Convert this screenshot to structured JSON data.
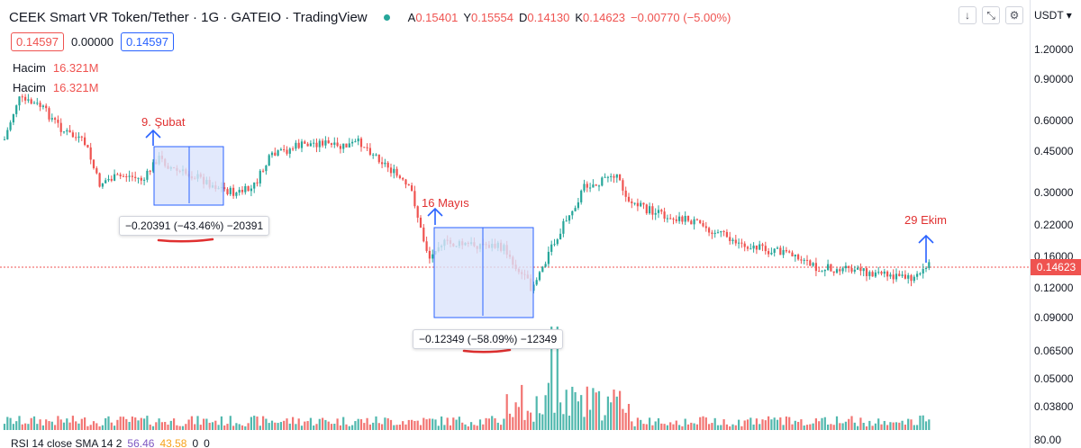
{
  "header": {
    "title": "CEEK Smart VR Token/Tether · 1G · GATEIO · TradingView",
    "ohlc": {
      "o_label": "A",
      "o_value": "0.15401",
      "h_label": "Y",
      "h_value": "0.15554",
      "l_label": "D",
      "l_value": "0.14130",
      "c_label": "K",
      "c_value": "0.14623",
      "change": "−0.00770 (−5.00%)"
    },
    "buttons": {
      "down": "↓",
      "fullscreen": "⤡",
      "settings": "⚙"
    }
  },
  "prices": {
    "bid": "0.14597",
    "spread": "0.00000",
    "ask": "0.14597"
  },
  "volume_labels": [
    {
      "name": "Hacim",
      "value": "16.321M"
    },
    {
      "name": "Hacim",
      "value": "16.321M"
    }
  ],
  "axis": {
    "currency": "USDT ▾",
    "ticks": [
      "1.20000",
      "0.90000",
      "0.60000",
      "0.45000",
      "0.30000",
      "0.22000",
      "0.16000",
      "0.12000",
      "0.09000",
      "0.06500",
      "0.05000",
      "0.03800"
    ],
    "current_price": "0.14623",
    "rsi_tick": "80.00"
  },
  "annotations": {
    "a1": "9. Şubat",
    "a2": "16 Mayıs",
    "a3": "29 Ekim"
  },
  "measures": {
    "m1": "−0.20391 (−43.46%) −20391",
    "m2": "−0.12349 (−58.09%) −12349"
  },
  "rsi": {
    "label": "RSI 14 close SMA 14 2",
    "v1": "56.46",
    "v2": "43.58",
    "v3": "0",
    "v4": "0"
  },
  "colors": {
    "up": "#26a69a",
    "down": "#ef5350",
    "measure_fill": "#dbe4fb",
    "measure_stroke": "#2962ff",
    "annotation": "#e03030"
  }
}
